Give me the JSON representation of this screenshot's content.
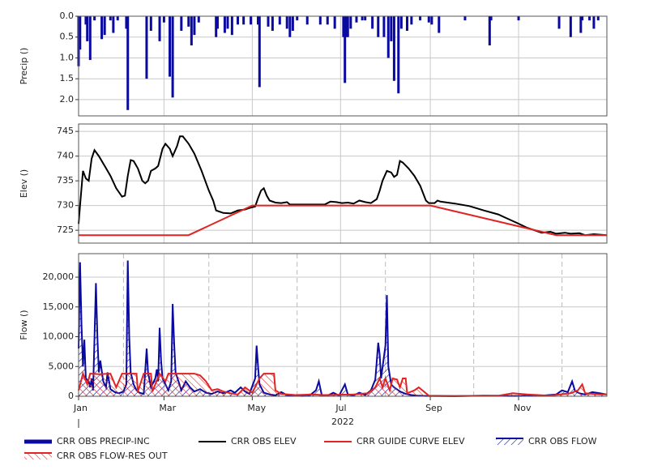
{
  "chart_data": [
    {
      "type": "bar",
      "ylabel": "Precip ()",
      "ylim": [
        0,
        2.39
      ],
      "y_inverted": true,
      "yticks": [
        {
          "value": 0,
          "label": "0.0"
        },
        0.5,
        {
          "value": 1,
          "label": "1.0"
        },
        1.5,
        {
          "value": 2,
          "label": "2.0"
        }
      ],
      "xlim": [
        0,
        365
      ],
      "xticks": [
        59,
        120,
        181,
        243,
        304
      ],
      "series": [
        {
          "name": "CRR OBS PRECIP-INC",
          "color": "#0a0aa0",
          "x": [
            0,
            1,
            5,
            6,
            8,
            11,
            16,
            18,
            22,
            24,
            27,
            33,
            34,
            47,
            50,
            56,
            59,
            63,
            65,
            71,
            76,
            78,
            80,
            83,
            95,
            96,
            101,
            103,
            106,
            110,
            114,
            119,
            124,
            125,
            131,
            134,
            139,
            144,
            146,
            148,
            151,
            158,
            167,
            172,
            177,
            183,
            184,
            185,
            186,
            188,
            192,
            196,
            198,
            203,
            207,
            211,
            214,
            216,
            218,
            221,
            223,
            227,
            230,
            236,
            242,
            244,
            249,
            267,
            284,
            285,
            304,
            332,
            340,
            347,
            348,
            353,
            356,
            359
          ],
          "values": [
            1.2,
            0.8,
            0.2,
            0.6,
            1.05,
            0.1,
            0.55,
            0.45,
            0.1,
            0.4,
            0.1,
            0.3,
            2.25,
            1.5,
            0.35,
            0.6,
            0.15,
            1.45,
            1.95,
            0.35,
            0.25,
            0.7,
            0.45,
            0.15,
            0.5,
            0.3,
            0.4,
            0.3,
            0.45,
            0.2,
            0.2,
            0.2,
            0.2,
            1.7,
            0.25,
            0.35,
            0.2,
            0.3,
            0.5,
            0.35,
            0.1,
            0.2,
            0.2,
            0.2,
            0.3,
            0.5,
            1.6,
            0.5,
            0.5,
            0.3,
            0.15,
            0.1,
            0.1,
            0.3,
            0.5,
            0.5,
            1.0,
            0.6,
            1.55,
            1.85,
            0.3,
            0.35,
            0.2,
            0.1,
            0.15,
            0.2,
            0.4,
            0.1,
            0.7,
            0.1,
            0.1,
            0.3,
            0.5,
            0.4,
            0.1,
            0.1,
            0.3,
            0.1
          ]
        }
      ]
    },
    {
      "type": "line",
      "ylabel": "Elev ()",
      "ylim": [
        722.4,
        746.5
      ],
      "yticks": [
        725,
        730,
        735,
        740,
        745
      ],
      "xlim": [
        0,
        365
      ],
      "xticks": [
        59,
        120,
        181,
        243,
        304
      ],
      "series": [
        {
          "name": "CRR OBS ELEV",
          "color": "#000000",
          "x": [
            0,
            1,
            3,
            5,
            7,
            9,
            11,
            14,
            18,
            22,
            26,
            30,
            32,
            34,
            36,
            38,
            41,
            44,
            46,
            48,
            50,
            53,
            55,
            58,
            60,
            63,
            65,
            68,
            70,
            72,
            76,
            80,
            85,
            90,
            93,
            95,
            100,
            105,
            110,
            115,
            118,
            122,
            124,
            126,
            128,
            130,
            132,
            136,
            140,
            144,
            146,
            160,
            170,
            174,
            178,
            182,
            186,
            190,
            194,
            198,
            202,
            206,
            208,
            210,
            213,
            216,
            218,
            220,
            222,
            224,
            228,
            232,
            236,
            240,
            242,
            246,
            248,
            250,
            260,
            270,
            280,
            290,
            296,
            302,
            310,
            320,
            326,
            330,
            336,
            340,
            346,
            350,
            356,
            365
          ],
          "values": [
            726.3,
            730,
            737,
            735.5,
            735,
            739.5,
            741.2,
            740,
            738,
            736,
            733.5,
            731.8,
            732,
            736,
            739.2,
            739,
            737.5,
            735,
            734.5,
            735,
            737,
            737.5,
            738,
            741.5,
            742.5,
            741.5,
            740,
            742,
            744,
            744,
            742.5,
            740.5,
            737,
            733,
            731,
            729,
            728.5,
            728.4,
            729,
            729.2,
            729.5,
            729.8,
            731.5,
            733,
            733.5,
            732,
            731,
            730.6,
            730.5,
            730.7,
            730.2,
            730.2,
            730.2,
            730.8,
            730.7,
            730.5,
            730.6,
            730.4,
            731,
            730.7,
            730.5,
            731.3,
            733,
            735,
            737,
            736.7,
            735.8,
            736.2,
            739,
            738.7,
            737.5,
            736,
            734,
            731,
            730.5,
            730.5,
            731,
            730.8,
            730.4,
            729.9,
            729,
            728.2,
            727.4,
            726.6,
            725.5,
            724.5,
            724.7,
            724.3,
            724.5,
            724.3,
            724.4,
            724,
            724.2,
            724
          ]
        },
        {
          "name": "CRR GUIDE CURVE ELEV",
          "color": "#e02424",
          "x": [
            0,
            76,
            120,
            243,
            330,
            365
          ],
          "values": [
            724,
            724,
            730,
            730,
            724,
            724
          ]
        }
      ]
    },
    {
      "type": "area",
      "ylabel": "Flow ()",
      "xlabel": "2022",
      "ylim": [
        0,
        23950
      ],
      "yticks": [
        0,
        {
          "value": 5000,
          "label": "5,000"
        },
        {
          "value": 10000,
          "label": "10,000"
        },
        {
          "value": 15000,
          "label": "15,000"
        },
        {
          "value": 20000,
          "label": "20,000"
        }
      ],
      "xlim": [
        0,
        365
      ],
      "xticks": [
        {
          "value": 0,
          "label": "Jan"
        },
        {
          "value": 59,
          "label": "Mar"
        },
        {
          "value": 120,
          "label": "May"
        },
        {
          "value": 181,
          "label": "Jul"
        },
        {
          "value": 243,
          "label": "Sep"
        },
        {
          "value": 304,
          "label": "Nov"
        }
      ],
      "xminorticks": [
        31,
        90,
        151,
        212,
        273,
        334
      ],
      "series": [
        {
          "name": "CRR OBS FLOW",
          "color": "#0a0aa0",
          "x": [
            0,
            1,
            2,
            3,
            4,
            5,
            7,
            8,
            9,
            10,
            12,
            13,
            14,
            15,
            17,
            19,
            20,
            22,
            25,
            28,
            31,
            33,
            34,
            35,
            36,
            38,
            40,
            42,
            45,
            47,
            48,
            50,
            53,
            54,
            55,
            56,
            57,
            58,
            60,
            62,
            64,
            65,
            66,
            67,
            69,
            71,
            74,
            77,
            80,
            84,
            88,
            92,
            96,
            100,
            105,
            108,
            112,
            115,
            118,
            122,
            123,
            124,
            125,
            128,
            132,
            136,
            140,
            144,
            148,
            155,
            160,
            164,
            166,
            168,
            172,
            176,
            180,
            184,
            186,
            190,
            194,
            198,
            202,
            205,
            207,
            208,
            209,
            212,
            213,
            214,
            216,
            218,
            222,
            226,
            230,
            234,
            240,
            260,
            280,
            300,
            320,
            330,
            334,
            338,
            341,
            343,
            346,
            350,
            355,
            360,
            365
          ],
          "values": [
            8000,
            22500,
            12000,
            5000,
            9500,
            3000,
            2500,
            1500,
            3000,
            1000,
            19000,
            10000,
            4000,
            6000,
            2500,
            1500,
            4000,
            1200,
            700,
            500,
            800,
            2000,
            22800,
            10000,
            4000,
            2000,
            1000,
            600,
            400,
            8000,
            4000,
            1500,
            3000,
            4500,
            2500,
            11500,
            6000,
            3000,
            2000,
            1000,
            2500,
            15500,
            9000,
            4000,
            2500,
            1000,
            2500,
            1500,
            800,
            1200,
            600,
            400,
            800,
            500,
            1000,
            600,
            1500,
            800,
            400,
            3000,
            8500,
            5000,
            2000,
            600,
            300,
            150,
            700,
            200,
            100,
            50,
            200,
            1000,
            2500,
            200,
            100,
            600,
            100,
            2000,
            300,
            150,
            600,
            200,
            1000,
            2800,
            9000,
            7000,
            3000,
            8500,
            17000,
            5000,
            2000,
            1500,
            800,
            400,
            200,
            100,
            50,
            20,
            100,
            50,
            100,
            300,
            1000,
            700,
            2500,
            900,
            500,
            300,
            700,
            500,
            300
          ]
        },
        {
          "name": "CRR OBS FLOW-RES OUT",
          "color": "#e02424",
          "x": [
            0,
            3,
            6,
            8,
            14,
            22,
            26,
            30,
            40,
            41,
            45,
            50,
            51,
            56,
            60,
            62,
            80,
            84,
            88,
            92,
            96,
            100,
            105,
            110,
            115,
            120,
            125,
            128,
            135,
            136,
            140,
            150,
            160,
            170,
            190,
            200,
            205,
            208,
            210,
            212,
            215,
            217,
            220,
            222,
            224,
            226,
            227,
            232,
            235,
            240,
            242,
            260,
            290,
            300,
            310,
            325,
            340,
            345,
            348,
            350,
            360,
            365
          ],
          "values": [
            1000,
            3800,
            2000,
            3800,
            3700,
            3800,
            1500,
            3800,
            3800,
            800,
            3800,
            3800,
            800,
            3800,
            2500,
            3800,
            3800,
            3500,
            2500,
            1000,
            1200,
            800,
            500,
            300,
            1500,
            600,
            3000,
            3800,
            3800,
            1000,
            400,
            200,
            300,
            200,
            300,
            500,
            1500,
            3000,
            1500,
            3000,
            1000,
            3000,
            2800,
            1500,
            3000,
            3000,
            500,
            1000,
            1500,
            500,
            100,
            50,
            100,
            500,
            300,
            100,
            500,
            1000,
            2000,
            500,
            300,
            300
          ]
        }
      ]
    }
  ]
}
